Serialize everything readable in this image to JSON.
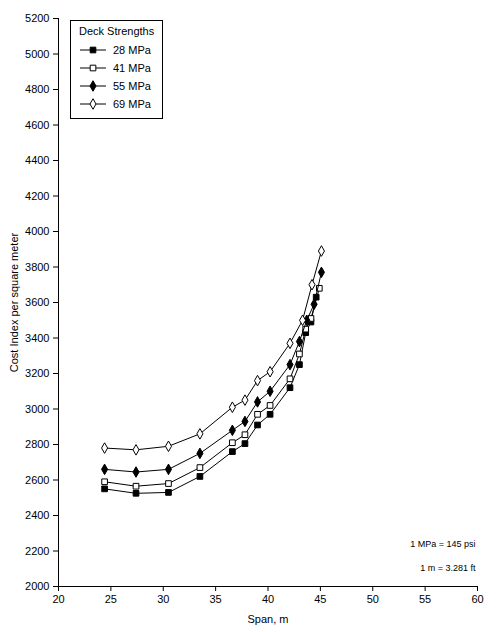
{
  "chart_data": {
    "type": "line",
    "x_label": "Span, m",
    "y_label": "Cost Index per square meter",
    "legend_title": "Deck Strengths",
    "legend": "top-left",
    "annotations": [
      "1 MPa = 145 psi",
      "1 m = 3.281 ft"
    ],
    "xlim": [
      20,
      60
    ],
    "xticks": [
      20,
      25,
      30,
      35,
      40,
      45,
      50,
      55,
      60
    ],
    "ylim": [
      2000,
      5200
    ],
    "yticks": [
      2000,
      2200,
      2400,
      2600,
      2800,
      3000,
      3200,
      3400,
      3600,
      3800,
      4000,
      4200,
      4400,
      4600,
      4800,
      5000,
      5200
    ],
    "grid": false,
    "series": [
      {
        "name": "28 MPa",
        "color": "#000000",
        "marker": "square",
        "x": [
          24.4,
          27.4,
          30.5,
          33.5,
          36.6,
          37.8,
          39.0,
          40.2,
          42.1,
          43.0,
          43.6,
          44.1,
          44.6
        ],
        "values": [
          2550,
          2525,
          2530,
          2620,
          2760,
          2805,
          2910,
          2970,
          3120,
          3250,
          3430,
          3490,
          3630
        ]
      },
      {
        "name": "41 MPa",
        "color": "#000000",
        "marker": "square-open",
        "x": [
          24.4,
          27.4,
          30.5,
          33.5,
          36.6,
          37.8,
          39.0,
          40.2,
          42.1,
          43.0,
          43.6,
          44.1,
          44.9
        ],
        "values": [
          2590,
          2565,
          2580,
          2670,
          2810,
          2855,
          2970,
          3020,
          3170,
          3310,
          3450,
          3510,
          3680
        ]
      },
      {
        "name": "55 MPa",
        "color": "#000000",
        "marker": "diamond",
        "x": [
          24.4,
          27.4,
          30.5,
          33.5,
          36.6,
          37.8,
          39.0,
          40.2,
          42.1,
          43.0,
          43.7,
          44.4,
          45.1
        ],
        "values": [
          2660,
          2645,
          2660,
          2750,
          2880,
          2930,
          3040,
          3100,
          3250,
          3380,
          3500,
          3590,
          3770
        ]
      },
      {
        "name": "69 MPa",
        "color": "#000000",
        "marker": "diamond-open",
        "x": [
          24.4,
          27.4,
          30.5,
          33.5,
          36.6,
          37.8,
          39.0,
          40.2,
          42.1,
          43.3,
          44.2,
          45.1
        ],
        "values": [
          2780,
          2770,
          2790,
          2860,
          3010,
          3050,
          3160,
          3210,
          3370,
          3500,
          3700,
          3890
        ]
      }
    ]
  }
}
